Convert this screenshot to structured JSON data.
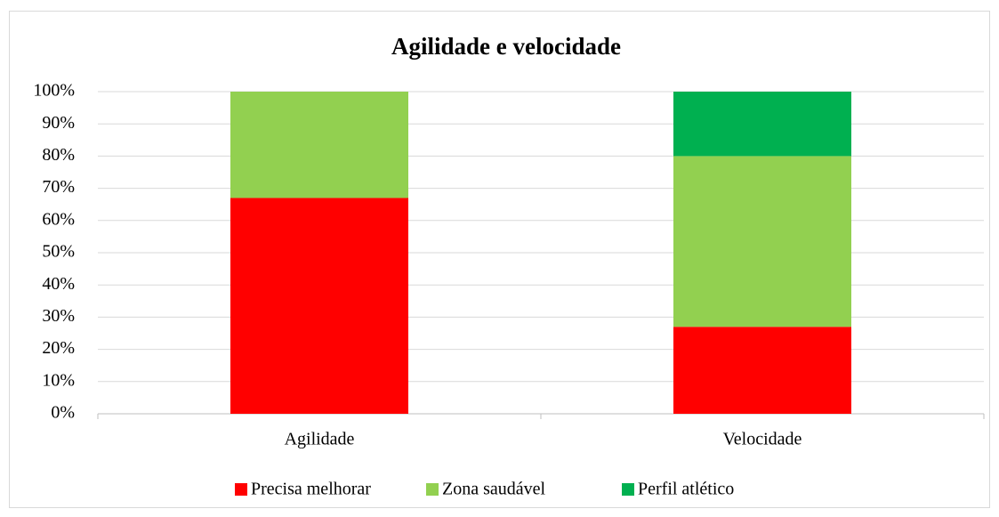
{
  "chart_data": {
    "type": "stacked_bar",
    "title": "Agilidade e velocidade",
    "categories": [
      "Agilidade",
      "Velocidade"
    ],
    "series": [
      {
        "name": "Precisa melhorar",
        "color": "#ff0000",
        "values": [
          67,
          27
        ]
      },
      {
        "name": "Zona saudável",
        "color": "#92d050",
        "values": [
          33,
          53
        ]
      },
      {
        "name": "Perfil atlético",
        "color": "#00b050",
        "values": [
          0,
          20
        ]
      }
    ],
    "ylim": [
      0,
      100
    ],
    "yticks": [
      {
        "value": 0,
        "label": "0%"
      },
      {
        "value": 10,
        "label": "10%"
      },
      {
        "value": 20,
        "label": "20%"
      },
      {
        "value": 30,
        "label": "30%"
      },
      {
        "value": 40,
        "label": "40%"
      },
      {
        "value": 50,
        "label": "50%"
      },
      {
        "value": 60,
        "label": "60%"
      },
      {
        "value": 70,
        "label": "70%"
      },
      {
        "value": 80,
        "label": "80%"
      },
      {
        "value": 90,
        "label": "90%"
      },
      {
        "value": 100,
        "label": "100%"
      }
    ],
    "grid": true,
    "legend": "bottom"
  }
}
